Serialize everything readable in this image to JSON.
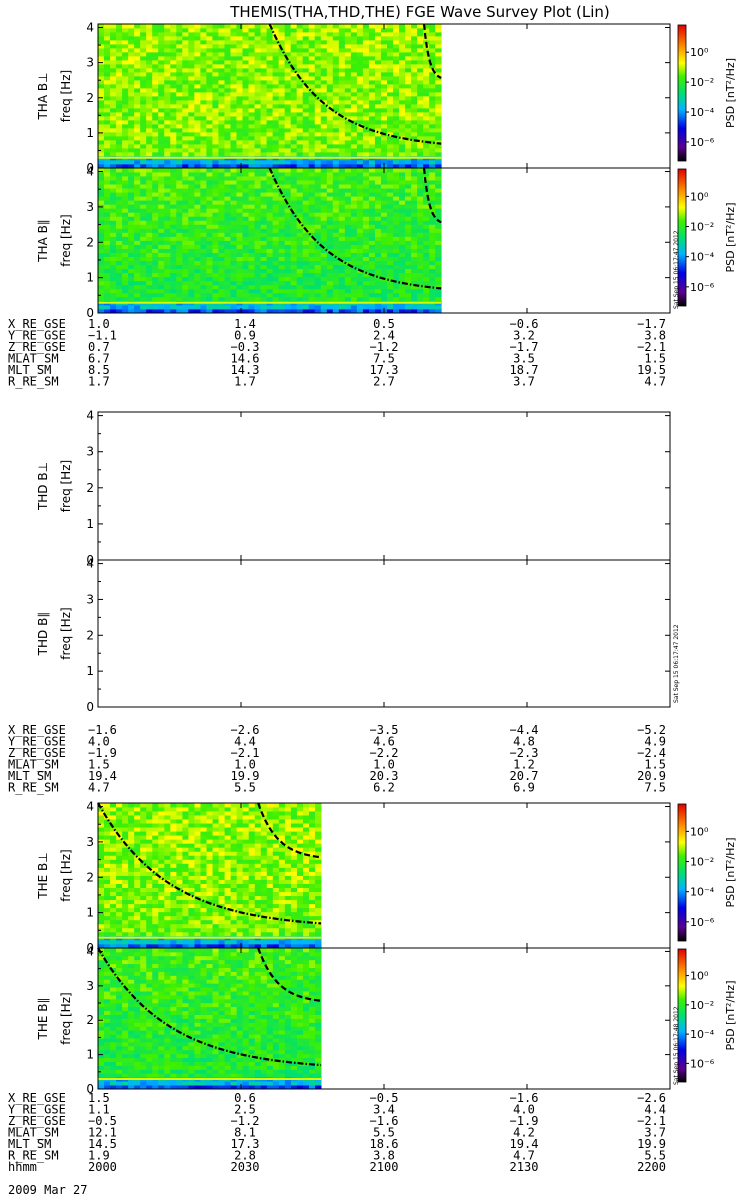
{
  "title": "THEMIS(THA,THD,THE) FGE Wave Survey Plot (Lin)",
  "colorbar": {
    "label": "PSD [nT²/Hz]",
    "ticks": [
      "10⁰",
      "10⁻²",
      "10⁻⁴",
      "10⁻⁶"
    ]
  },
  "stamp_text": "Sat Sep 15 06:17:47 2012",
  "stamp_text_the": "Sat Sep 15 06:17:48 2012",
  "freq_ticks": [
    "0",
    "1",
    "2",
    "3",
    "4"
  ],
  "date_label": "2009 Mar 27",
  "chart_data": [
    {
      "type": "heatmap",
      "name": "THA B⊥",
      "panel_label": "THA B⊥",
      "ylabel": "freq [Hz]",
      "ylim": [
        0,
        4.1
      ],
      "data_coverage": [
        0,
        0.6
      ],
      "curves": [
        "dash-dot gyrofrequency-like curve decreasing from ~4 Hz to ~0.6 Hz",
        "dashed curve decreasing from ~4 Hz to ~2.7 Hz"
      ],
      "colorbar": true
    },
    {
      "type": "heatmap",
      "name": "THA B∥",
      "panel_label": "THA B∥",
      "ylabel": "freq [Hz]",
      "ylim": [
        0,
        4.1
      ],
      "data_coverage": [
        0,
        0.6
      ],
      "colorbar": true
    },
    {
      "type": "table",
      "name": "THA orbit",
      "rows": [
        {
          "label": "X_RE_GSE",
          "values": [
            "1.0",
            "1.4",
            "0.5",
            "−0.6",
            "−1.7"
          ]
        },
        {
          "label": "Y_RE_GSE",
          "values": [
            "−1.1",
            "0.9",
            "2.4",
            "3.2",
            "3.8"
          ]
        },
        {
          "label": "Z_RE_GSE",
          "values": [
            "0.7",
            "−0.3",
            "−1.2",
            "−1.7",
            "−2.1"
          ]
        },
        {
          "label": "MLAT_SM",
          "values": [
            "6.7",
            "14.6",
            "7.5",
            "3.5",
            "1.5"
          ]
        },
        {
          "label": "MLT_SM",
          "values": [
            "8.5",
            "14.3",
            "17.3",
            "18.7",
            "19.5"
          ]
        },
        {
          "label": "R_RE_SM",
          "values": [
            "1.7",
            "1.7",
            "2.7",
            "3.7",
            "4.7"
          ]
        }
      ]
    },
    {
      "type": "heatmap",
      "name": "THD B⊥",
      "panel_label": "THD B⊥",
      "ylabel": "freq [Hz]",
      "ylim": [
        0,
        4.1
      ],
      "data_coverage": [
        0,
        0
      ],
      "colorbar": false
    },
    {
      "type": "heatmap",
      "name": "THD B∥",
      "panel_label": "THD B∥",
      "ylabel": "freq [Hz]",
      "ylim": [
        0,
        4.1
      ],
      "data_coverage": [
        0,
        0
      ],
      "colorbar": false
    },
    {
      "type": "table",
      "name": "THD orbit",
      "rows": [
        {
          "label": "X_RE_GSE",
          "values": [
            "−1.6",
            "−2.6",
            "−3.5",
            "−4.4",
            "−5.2"
          ]
        },
        {
          "label": "Y_RE_GSE",
          "values": [
            "4.0",
            "4.4",
            "4.6",
            "4.8",
            "4.9"
          ]
        },
        {
          "label": "Z_RE_GSE",
          "values": [
            "−1.9",
            "−2.1",
            "−2.2",
            "−2.3",
            "−2.4"
          ]
        },
        {
          "label": "MLAT_SM",
          "values": [
            "1.5",
            "1.0",
            "1.0",
            "1.2",
            "1.5"
          ]
        },
        {
          "label": "MLT_SM",
          "values": [
            "19.4",
            "19.9",
            "20.3",
            "20.7",
            "20.9"
          ]
        },
        {
          "label": "R_RE_SM",
          "values": [
            "4.7",
            "5.5",
            "6.2",
            "6.9",
            "7.5"
          ]
        }
      ]
    },
    {
      "type": "heatmap",
      "name": "THE B⊥",
      "panel_label": "THE B⊥",
      "ylabel": "freq [Hz]",
      "ylim": [
        0,
        4.1
      ],
      "data_coverage": [
        0,
        0.39
      ],
      "colorbar": true
    },
    {
      "type": "heatmap",
      "name": "THE B∥",
      "panel_label": "THE B∥",
      "ylabel": "freq [Hz]",
      "ylim": [
        0,
        4.1
      ],
      "data_coverage": [
        0,
        0.39
      ],
      "colorbar": true
    },
    {
      "type": "table",
      "name": "THE orbit",
      "rows": [
        {
          "label": "X_RE_GSE",
          "values": [
            "1.5",
            "0.6",
            "−0.5",
            "−1.6",
            "−2.6"
          ]
        },
        {
          "label": "Y_RE_GSE",
          "values": [
            "1.1",
            "2.5",
            "3.4",
            "4.0",
            "4.4"
          ]
        },
        {
          "label": "Z_RE_GSE",
          "values": [
            "−0.5",
            "−1.2",
            "−1.6",
            "−1.9",
            "−2.1"
          ]
        },
        {
          "label": "MLAT_SM",
          "values": [
            "12.1",
            "8.1",
            "5.5",
            "4.2",
            "3.7"
          ]
        },
        {
          "label": "MLT_SM",
          "values": [
            "14.5",
            "17.3",
            "18.6",
            "19.4",
            "19.9"
          ]
        },
        {
          "label": "R_RE_SM",
          "values": [
            "1.9",
            "2.8",
            "3.8",
            "4.7",
            "5.5"
          ]
        },
        {
          "label": "hhmm",
          "values": [
            "2000",
            "2030",
            "2100",
            "2130",
            "2200"
          ]
        }
      ]
    }
  ]
}
